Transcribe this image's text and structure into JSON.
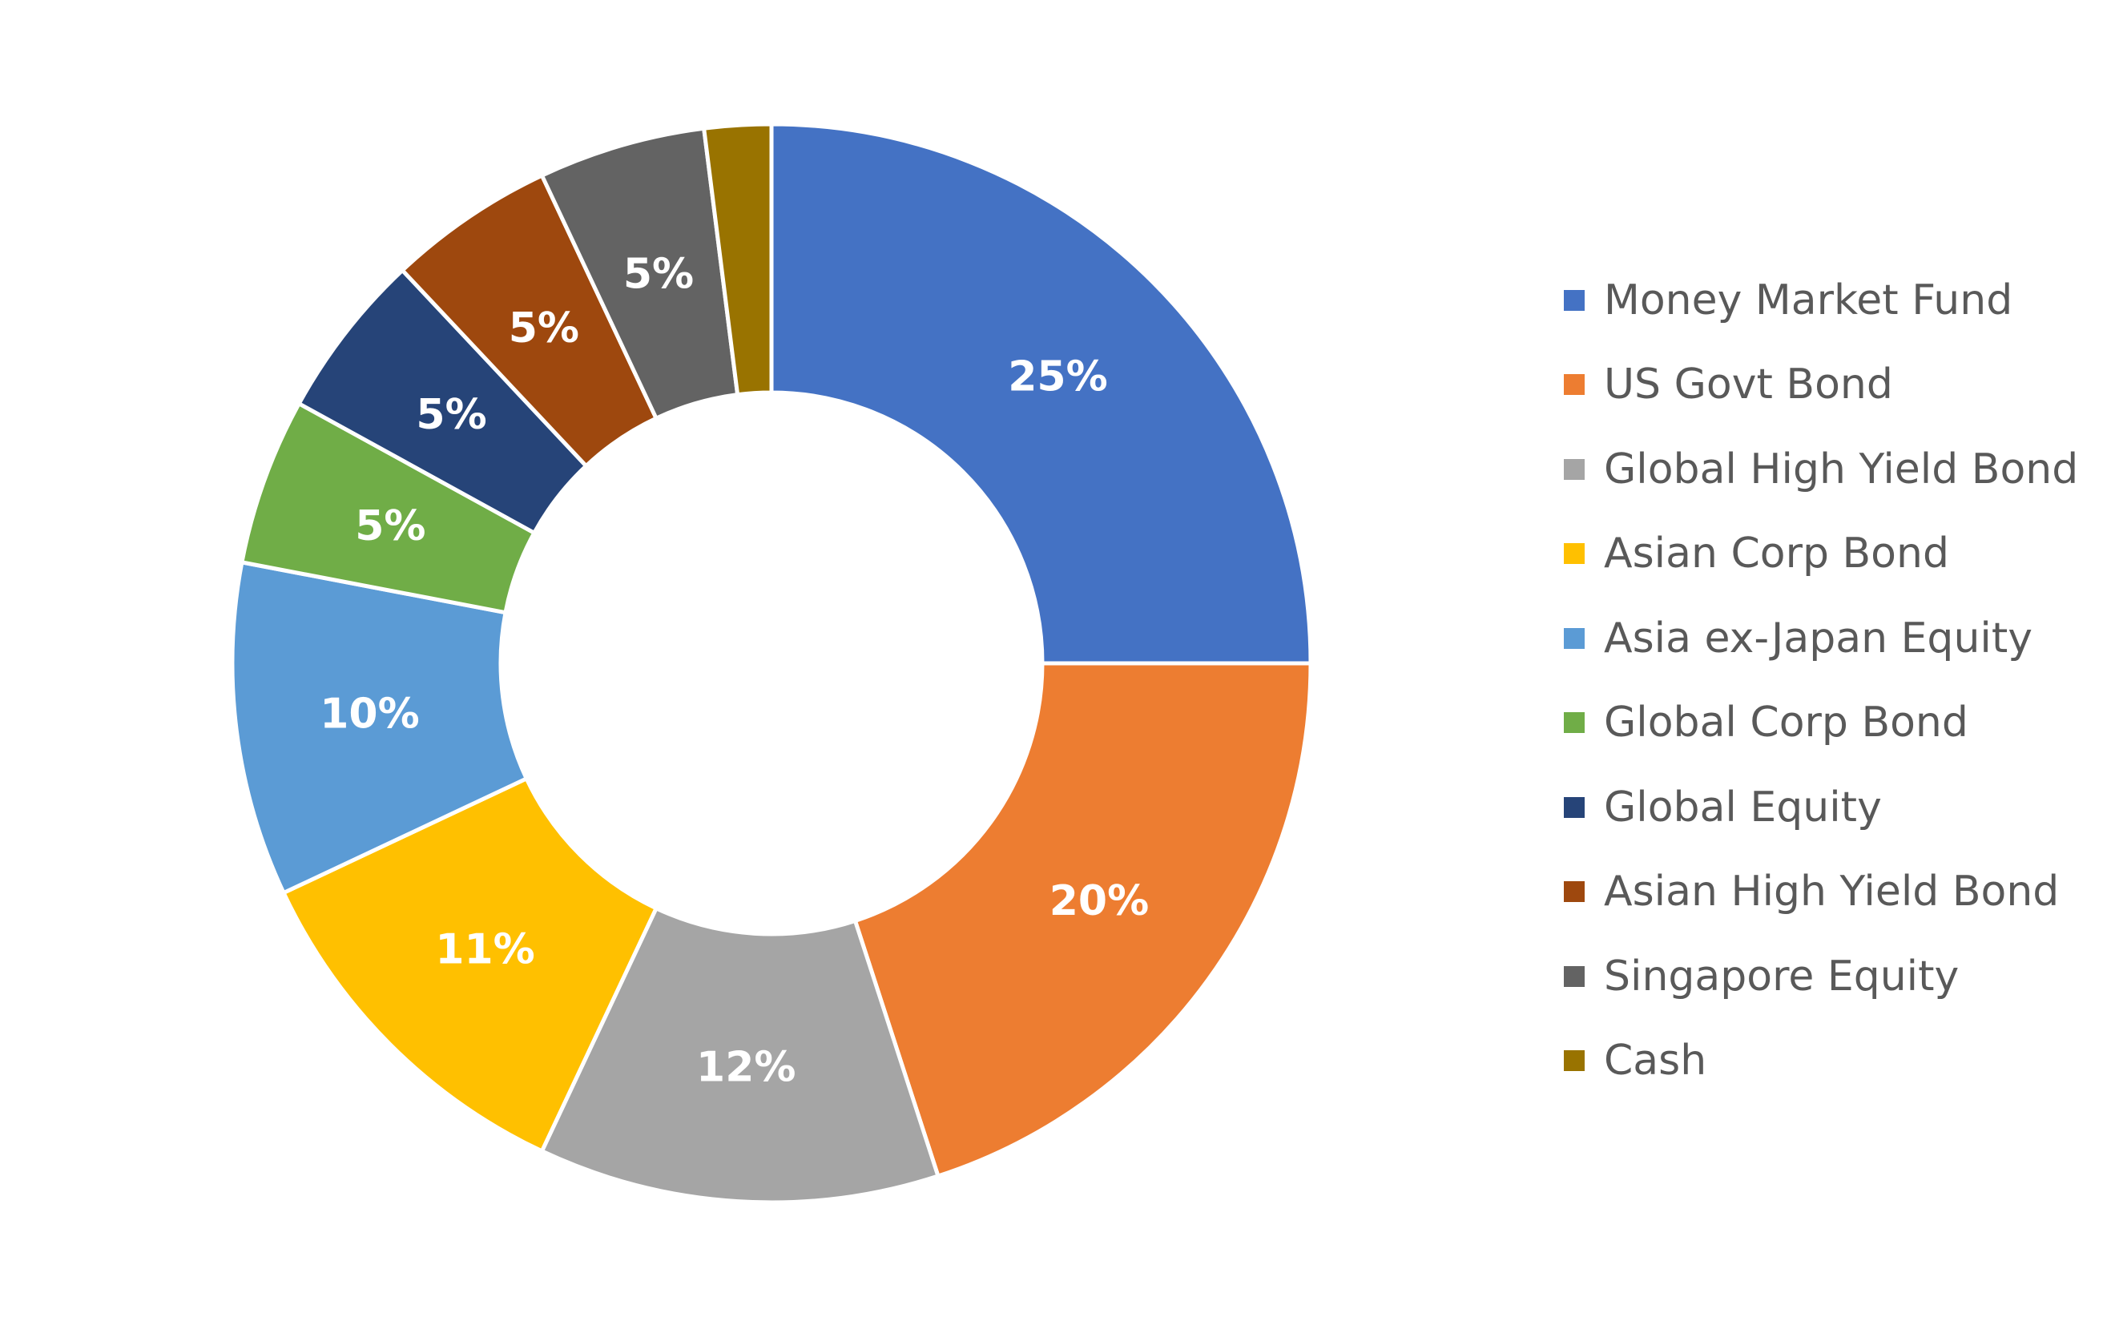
{
  "chart_data": {
    "type": "pie",
    "variant": "donut",
    "title": "",
    "legend_position": "right",
    "label_format": "percent",
    "slices": [
      {
        "label": "Money Market Fund",
        "value": 25,
        "display": "25%",
        "color": "#4472C4"
      },
      {
        "label": "US Govt Bond",
        "value": 20,
        "display": "20%",
        "color": "#ED7D31"
      },
      {
        "label": "Global High Yield Bond",
        "value": 12,
        "display": "12%",
        "color": "#A5A5A5"
      },
      {
        "label": "Asian Corp Bond",
        "value": 11,
        "display": "11%",
        "color": "#FFC000"
      },
      {
        "label": "Asia ex-Japan Equity",
        "value": 10,
        "display": "10%",
        "color": "#5B9BD5"
      },
      {
        "label": "Global Corp Bond",
        "value": 5,
        "display": "5%",
        "color": "#70AD47"
      },
      {
        "label": "Global Equity",
        "value": 5,
        "display": "5%",
        "color": "#264478"
      },
      {
        "label": "Asian High Yield Bond",
        "value": 5,
        "display": "5%",
        "color": "#9E480E"
      },
      {
        "label": "Singapore Equity",
        "value": 5,
        "display": "5%",
        "color": "#636363"
      },
      {
        "label": "Cash",
        "value": 2,
        "display": "",
        "color": "#997300"
      }
    ]
  }
}
